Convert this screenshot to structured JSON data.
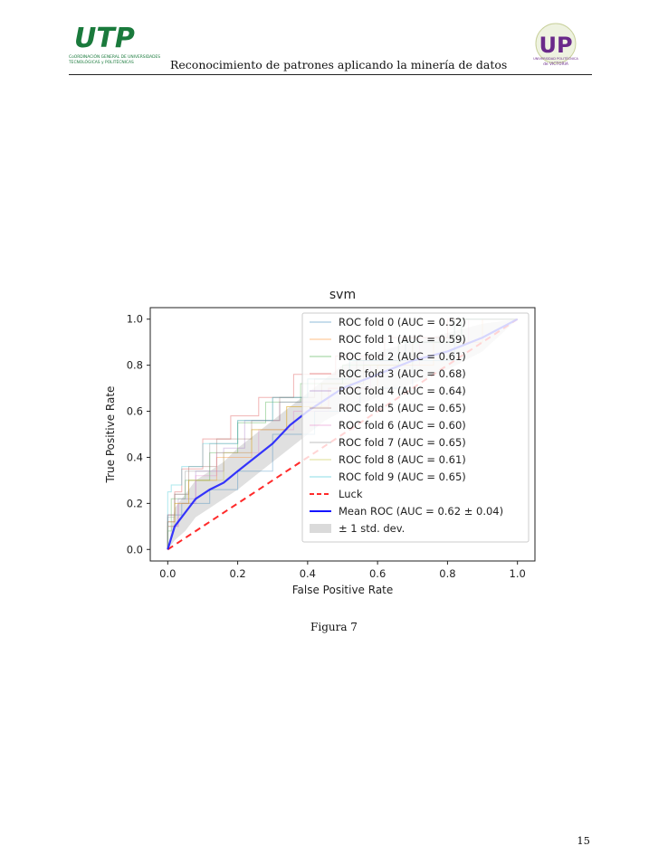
{
  "header": {
    "title": "Reconocimiento de patrones aplicando la minería de datos",
    "left_logo": {
      "mark": "UTP",
      "subtext": [
        "CoORDINACIÓN GENERAL DE UNIVERSIDADES",
        "TECNOLÓGICAS y POLITÉCNICAS"
      ]
    },
    "right_logo": {
      "mark": "UP",
      "subtext": [
        "UNIVERSIDAD POLITÉCNICA",
        "de VICTORIA"
      ]
    }
  },
  "chart_data": {
    "type": "line",
    "title": "svm",
    "xlabel": "False Positive Rate",
    "ylabel": "True Positive Rate",
    "xlim": [
      -0.05,
      1.05
    ],
    "ylim": [
      -0.05,
      1.05
    ],
    "xticks": [
      "0.0",
      "0.2",
      "0.4",
      "0.6",
      "0.8",
      "1.0"
    ],
    "yticks": [
      "0.0",
      "0.2",
      "0.4",
      "0.6",
      "0.8",
      "1.0"
    ],
    "legend_position": "upper-right",
    "series": [
      {
        "name": "ROC fold 0 (AUC = 0.52)",
        "color": "#1f77b4",
        "x": [
          0,
          0,
          0.04,
          0.12,
          0.2,
          0.3,
          0.42,
          0.55,
          0.7,
          0.82,
          1
        ],
        "y": [
          0,
          0.1,
          0.15,
          0.2,
          0.26,
          0.34,
          0.5,
          0.6,
          0.7,
          0.82,
          1
        ]
      },
      {
        "name": "ROC fold 1 (AUC = 0.59)",
        "color": "#ff7f0e",
        "x": [
          0,
          0.02,
          0.06,
          0.14,
          0.24,
          0.34,
          0.46,
          0.6,
          0.76,
          0.9,
          1
        ],
        "y": [
          0,
          0.12,
          0.2,
          0.3,
          0.4,
          0.52,
          0.62,
          0.7,
          0.8,
          0.9,
          1
        ]
      },
      {
        "name": "ROC fold 2 (AUC = 0.61)",
        "color": "#2ca02c",
        "x": [
          0,
          0.01,
          0.05,
          0.12,
          0.2,
          0.28,
          0.38,
          0.5,
          0.66,
          0.82,
          1
        ],
        "y": [
          0,
          0.08,
          0.22,
          0.3,
          0.42,
          0.55,
          0.64,
          0.72,
          0.8,
          0.9,
          1
        ]
      },
      {
        "name": "ROC fold 3 (AUC = 0.68)",
        "color": "#d62728",
        "x": [
          0,
          0.02,
          0.04,
          0.1,
          0.18,
          0.26,
          0.36,
          0.48,
          0.62,
          0.8,
          1
        ],
        "y": [
          0,
          0.15,
          0.25,
          0.35,
          0.48,
          0.58,
          0.66,
          0.76,
          0.84,
          0.92,
          1
        ]
      },
      {
        "name": "ROC fold 4 (AUC = 0.64)",
        "color": "#9467bd",
        "x": [
          0,
          0.03,
          0.08,
          0.16,
          0.22,
          0.32,
          0.44,
          0.56,
          0.7,
          0.84,
          1
        ],
        "y": [
          0,
          0.1,
          0.22,
          0.34,
          0.44,
          0.56,
          0.64,
          0.72,
          0.82,
          0.9,
          1
        ]
      },
      {
        "name": "ROC fold 5 (AUC = 0.65)",
        "color": "#8c564b",
        "x": [
          0,
          0.02,
          0.06,
          0.14,
          0.24,
          0.32,
          0.42,
          0.54,
          0.68,
          0.84,
          1
        ],
        "y": [
          0,
          0.12,
          0.24,
          0.36,
          0.48,
          0.56,
          0.66,
          0.74,
          0.82,
          0.92,
          1
        ]
      },
      {
        "name": "ROC fold 6 (AUC = 0.60)",
        "color": "#e377c2",
        "x": [
          0,
          0.03,
          0.08,
          0.14,
          0.26,
          0.36,
          0.46,
          0.58,
          0.72,
          0.86,
          1
        ],
        "y": [
          0,
          0.1,
          0.2,
          0.32,
          0.42,
          0.52,
          0.6,
          0.7,
          0.8,
          0.9,
          1
        ]
      },
      {
        "name": "ROC fold 7 (AUC = 0.65)",
        "color": "#7f7f7f",
        "x": [
          0,
          0.02,
          0.05,
          0.12,
          0.2,
          0.3,
          0.4,
          0.52,
          0.66,
          0.82,
          1
        ],
        "y": [
          0,
          0.14,
          0.24,
          0.34,
          0.46,
          0.56,
          0.66,
          0.74,
          0.82,
          0.9,
          1
        ]
      },
      {
        "name": "ROC fold 8 (AUC = 0.61)",
        "color": "#bcbd22",
        "x": [
          0,
          0.02,
          0.06,
          0.16,
          0.24,
          0.34,
          0.44,
          0.56,
          0.7,
          0.84,
          1
        ],
        "y": [
          0,
          0.1,
          0.2,
          0.3,
          0.42,
          0.52,
          0.62,
          0.72,
          0.8,
          0.9,
          1
        ]
      },
      {
        "name": "ROC fold 9 (AUC = 0.65)",
        "color": "#17becf",
        "x": [
          0,
          0.01,
          0.04,
          0.1,
          0.2,
          0.3,
          0.4,
          0.52,
          0.68,
          0.84,
          1
        ],
        "y": [
          0,
          0.25,
          0.28,
          0.36,
          0.46,
          0.56,
          0.66,
          0.74,
          0.82,
          0.9,
          1
        ]
      },
      {
        "name": "Luck",
        "color": "#ff2a2a",
        "dashed": true,
        "x": [
          0,
          1
        ],
        "y": [
          0,
          1
        ]
      },
      {
        "name": "Mean ROC (AUC = 0.62 ± 0.04)",
        "color": "#1515ff",
        "bold": true,
        "x": [
          0,
          0.02,
          0.05,
          0.08,
          0.12,
          0.16,
          0.2,
          0.25,
          0.3,
          0.35,
          0.4,
          0.45,
          0.5,
          0.6,
          0.7,
          0.8,
          0.9,
          1
        ],
        "y": [
          0,
          0.1,
          0.16,
          0.22,
          0.26,
          0.29,
          0.34,
          0.4,
          0.46,
          0.54,
          0.6,
          0.65,
          0.7,
          0.76,
          0.82,
          0.86,
          0.92,
          1
        ]
      }
    ],
    "band": {
      "name": "± 1 std. dev.",
      "color": "#bbbbbb",
      "x": [
        0,
        0.02,
        0.05,
        0.08,
        0.12,
        0.16,
        0.2,
        0.25,
        0.3,
        0.35,
        0.4,
        0.45,
        0.5,
        0.6,
        0.7,
        0.8,
        0.9,
        1
      ],
      "upper": [
        0,
        0.18,
        0.24,
        0.3,
        0.34,
        0.38,
        0.44,
        0.5,
        0.56,
        0.62,
        0.68,
        0.74,
        0.8,
        0.86,
        0.9,
        0.94,
        0.98,
        1
      ],
      "lower": [
        0,
        0.04,
        0.08,
        0.14,
        0.18,
        0.22,
        0.26,
        0.32,
        0.38,
        0.44,
        0.5,
        0.56,
        0.6,
        0.66,
        0.72,
        0.78,
        0.86,
        1
      ]
    }
  },
  "caption": "Figura 7",
  "page_number": "15"
}
